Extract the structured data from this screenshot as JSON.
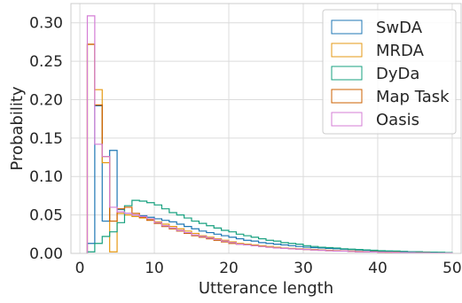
{
  "chart_data": {
    "type": "histogram-step",
    "xlabel": "Utterance length",
    "ylabel": "Probability",
    "xlim": [
      -1.2,
      51.2
    ],
    "ylim": [
      0,
      0.325
    ],
    "xticks": [
      0,
      10,
      20,
      30,
      40,
      50
    ],
    "yticks": [
      0.0,
      0.05,
      0.1,
      0.15,
      0.2,
      0.25,
      0.3
    ],
    "ytick_labels": [
      "0.00",
      "0.05",
      "0.10",
      "0.15",
      "0.20",
      "0.25",
      "0.30"
    ],
    "grid": true,
    "legend_position": "top-right",
    "bin_start": 1,
    "bin_width": 1,
    "series": [
      {
        "name": "SwDA",
        "color": "#1f77b4",
        "values": [
          0.013,
          0.192,
          0.042,
          0.134,
          0.057,
          0.052,
          0.05,
          0.049,
          0.047,
          0.045,
          0.043,
          0.041,
          0.038,
          0.035,
          0.032,
          0.029,
          0.027,
          0.025,
          0.023,
          0.021,
          0.019,
          0.017,
          0.016,
          0.014,
          0.013,
          0.012,
          0.011,
          0.01,
          0.009,
          0.008,
          0.0075,
          0.007,
          0.0065,
          0.006,
          0.0055,
          0.005,
          0.0045,
          0.004,
          0.0035,
          0.003,
          0.003,
          0.0025,
          0.0025,
          0.002,
          0.002,
          0.0015,
          0.0015,
          0.001,
          0.001
        ]
      },
      {
        "name": "MRDA",
        "color": "#e69a14",
        "values": [
          0.272,
          0.213,
          0.118,
          0.002,
          0.052,
          0.05,
          0.048,
          0.046,
          0.044,
          0.041,
          0.038,
          0.035,
          0.032,
          0.029,
          0.026,
          0.023,
          0.021,
          0.019,
          0.017,
          0.015,
          0.013,
          0.012,
          0.011,
          0.01,
          0.009,
          0.008,
          0.007,
          0.0065,
          0.006,
          0.0055,
          0.005,
          0.0045,
          0.004,
          0.0035,
          0.003,
          0.003,
          0.0025,
          0.002,
          0.002,
          0.0018,
          0.0015,
          0.0015,
          0.0012,
          0.001,
          0.001,
          0.001,
          0.0008,
          0.0008,
          0.0005
        ]
      },
      {
        "name": "DyDa",
        "color": "#17a07f",
        "values": [
          0.002,
          0.013,
          0.022,
          0.028,
          0.04,
          0.062,
          0.069,
          0.068,
          0.066,
          0.063,
          0.058,
          0.053,
          0.05,
          0.046,
          0.042,
          0.039,
          0.036,
          0.033,
          0.03,
          0.028,
          0.025,
          0.023,
          0.021,
          0.019,
          0.017,
          0.016,
          0.014,
          0.013,
          0.012,
          0.01,
          0.009,
          0.008,
          0.0075,
          0.007,
          0.006,
          0.0055,
          0.005,
          0.0045,
          0.004,
          0.0035,
          0.003,
          0.003,
          0.0025,
          0.002,
          0.002,
          0.0018,
          0.0015,
          0.0015,
          0.001
        ]
      },
      {
        "name": "Map Task",
        "color": "#cc6200",
        "values": [
          0.272,
          0.193,
          0.126,
          0.042,
          0.058,
          0.06,
          0.052,
          0.047,
          0.043,
          0.039,
          0.035,
          0.032,
          0.029,
          0.026,
          0.023,
          0.021,
          0.019,
          0.017,
          0.015,
          0.013,
          0.012,
          0.011,
          0.01,
          0.009,
          0.008,
          0.007,
          0.0065,
          0.006,
          0.0055,
          0.005,
          0.0045,
          0.004,
          0.0035,
          0.003,
          0.003,
          0.0025,
          0.002,
          0.002,
          0.0018,
          0.0015,
          0.0015,
          0.0012,
          0.001,
          0.001,
          0.0008,
          0.0008,
          0.0005,
          0.0005,
          0.0005
        ]
      },
      {
        "name": "Oasis",
        "color": "#d47ed6",
        "values": [
          0.309,
          0.142,
          0.126,
          0.06,
          0.054,
          0.052,
          0.05,
          0.048,
          0.045,
          0.04,
          0.036,
          0.033,
          0.03,
          0.027,
          0.024,
          0.022,
          0.02,
          0.018,
          0.016,
          0.014,
          0.012,
          0.011,
          0.01,
          0.009,
          0.008,
          0.007,
          0.0065,
          0.006,
          0.0055,
          0.005,
          0.0045,
          0.004,
          0.0035,
          0.003,
          0.003,
          0.0025,
          0.002,
          0.002,
          0.0018,
          0.0015,
          0.0015,
          0.0012,
          0.001,
          0.001,
          0.0008,
          0.0008,
          0.0005,
          0.0005,
          0.0005
        ]
      }
    ]
  }
}
